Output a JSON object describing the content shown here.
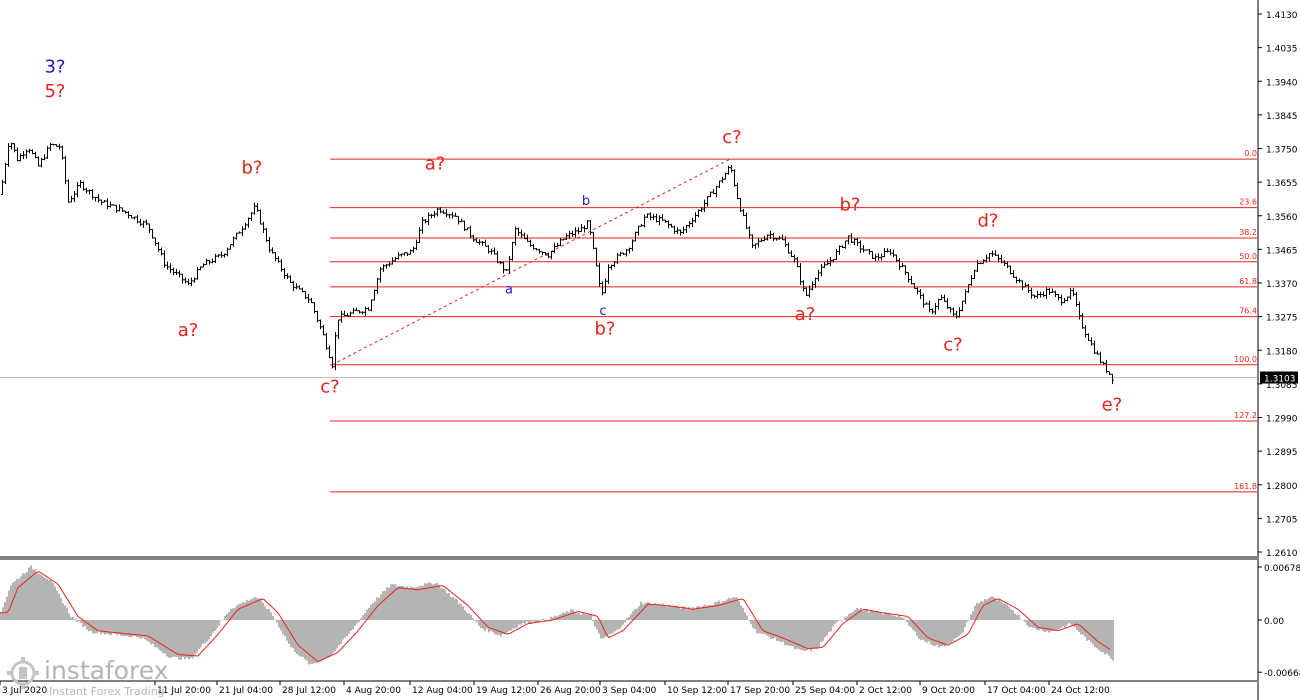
{
  "chart_data": [
    {
      "type": "bar",
      "panel": "price",
      "y_ticks": [
        1.413,
        1.4035,
        1.394,
        1.3845,
        1.375,
        1.3655,
        1.356,
        1.3465,
        1.337,
        1.3275,
        1.318,
        1.3085,
        1.299,
        1.2895,
        1.28,
        1.2705,
        1.261
      ],
      "y_tick_labels": [
        "1.4130",
        "1.4035",
        "1.3940",
        "1.3845",
        "1.3750",
        "1.3655",
        "1.3560",
        "1.3465",
        "1.3370",
        "1.3275",
        "1.3180",
        "1.3085",
        "1.2990",
        "1.2895",
        "1.2800",
        "1.2705",
        "1.2610"
      ],
      "ylim": [
        1.26,
        1.4165
      ],
      "x_tick_labels": [
        "3 Jul 2020",
        "11 Jul 20:00",
        "21 Jul 04:00",
        "28 Jul 12:00",
        "4 Aug 20:00",
        "12 Aug 04:00",
        "19 Aug 12:00",
        "26 Aug 20:00",
        "3 Sep 04:00",
        "10 Sep 12:00",
        "17 Sep 20:00",
        "25 Sep 04:00",
        "2 Oct 12:00",
        "9 Oct 20:00",
        "17 Oct 04:00",
        "24 Oct 12:00"
      ],
      "current_price": 1.3103,
      "current_price_label": "1.3103",
      "waypoints": [
        {
          "x": 0,
          "y": 1.362
        },
        {
          "x": 9,
          "y": 1.378
        },
        {
          "x": 17,
          "y": 1.372
        },
        {
          "x": 28,
          "y": 1.3755
        },
        {
          "x": 38,
          "y": 1.37
        },
        {
          "x": 50,
          "y": 1.376
        },
        {
          "x": 60,
          "y": 1.3755
        },
        {
          "x": 68,
          "y": 1.36
        },
        {
          "x": 80,
          "y": 1.365
        },
        {
          "x": 100,
          "y": 1.36
        },
        {
          "x": 125,
          "y": 1.357
        },
        {
          "x": 148,
          "y": 1.353
        },
        {
          "x": 165,
          "y": 1.342
        },
        {
          "x": 182,
          "y": 1.338
        },
        {
          "x": 188,
          "y": 1.3365
        },
        {
          "x": 202,
          "y": 1.342
        },
        {
          "x": 222,
          "y": 1.345
        },
        {
          "x": 240,
          "y": 1.352
        },
        {
          "x": 255,
          "y": 1.3585
        },
        {
          "x": 270,
          "y": 1.346
        },
        {
          "x": 290,
          "y": 1.337
        },
        {
          "x": 310,
          "y": 1.332
        },
        {
          "x": 322,
          "y": 1.323
        },
        {
          "x": 332,
          "y": 1.314
        },
        {
          "x": 337,
          "y": 1.327
        },
        {
          "x": 352,
          "y": 1.3285
        },
        {
          "x": 368,
          "y": 1.33
        },
        {
          "x": 380,
          "y": 1.341
        },
        {
          "x": 398,
          "y": 1.3445
        },
        {
          "x": 412,
          "y": 1.346
        },
        {
          "x": 422,
          "y": 1.354
        },
        {
          "x": 438,
          "y": 1.358
        },
        {
          "x": 455,
          "y": 1.356
        },
        {
          "x": 472,
          "y": 1.35
        },
        {
          "x": 490,
          "y": 1.346
        },
        {
          "x": 506,
          "y": 1.34
        },
        {
          "x": 515,
          "y": 1.352
        },
        {
          "x": 528,
          "y": 1.348
        },
        {
          "x": 548,
          "y": 1.345
        },
        {
          "x": 565,
          "y": 1.35
        },
        {
          "x": 580,
          "y": 1.352
        },
        {
          "x": 588,
          "y": 1.354
        },
        {
          "x": 595,
          "y": 1.343
        },
        {
          "x": 601,
          "y": 1.333
        },
        {
          "x": 608,
          "y": 1.342
        },
        {
          "x": 628,
          "y": 1.347
        },
        {
          "x": 645,
          "y": 1.356
        },
        {
          "x": 662,
          "y": 1.3545
        },
        {
          "x": 680,
          "y": 1.351
        },
        {
          "x": 700,
          "y": 1.358
        },
        {
          "x": 718,
          "y": 1.365
        },
        {
          "x": 730,
          "y": 1.37
        },
        {
          "x": 738,
          "y": 1.36
        },
        {
          "x": 752,
          "y": 1.347
        },
        {
          "x": 768,
          "y": 1.351
        },
        {
          "x": 782,
          "y": 1.349
        },
        {
          "x": 795,
          "y": 1.343
        },
        {
          "x": 805,
          "y": 1.333
        },
        {
          "x": 815,
          "y": 1.339
        },
        {
          "x": 832,
          "y": 1.344
        },
        {
          "x": 848,
          "y": 1.35
        },
        {
          "x": 860,
          "y": 1.347
        },
        {
          "x": 875,
          "y": 1.344
        },
        {
          "x": 890,
          "y": 1.346
        },
        {
          "x": 905,
          "y": 1.34
        },
        {
          "x": 920,
          "y": 1.333
        },
        {
          "x": 930,
          "y": 1.3285
        },
        {
          "x": 940,
          "y": 1.333
        },
        {
          "x": 955,
          "y": 1.327
        },
        {
          "x": 965,
          "y": 1.334
        },
        {
          "x": 975,
          "y": 1.342
        },
        {
          "x": 990,
          "y": 1.3455
        },
        {
          "x": 1005,
          "y": 1.342
        },
        {
          "x": 1020,
          "y": 1.337
        },
        {
          "x": 1035,
          "y": 1.333
        },
        {
          "x": 1048,
          "y": 1.335
        },
        {
          "x": 1060,
          "y": 1.332
        },
        {
          "x": 1072,
          "y": 1.3345
        },
        {
          "x": 1080,
          "y": 1.326
        },
        {
          "x": 1092,
          "y": 1.319
        },
        {
          "x": 1102,
          "y": 1.314
        },
        {
          "x": 1112,
          "y": 1.3103
        }
      ],
      "fib_levels": [
        {
          "value": 1.372,
          "label": "0.0"
        },
        {
          "value": 1.3583,
          "label": "23.6"
        },
        {
          "value": 1.3497,
          "label": "38.2"
        },
        {
          "value": 1.343,
          "label": "50.0"
        },
        {
          "value": 1.3359,
          "label": "61.8"
        },
        {
          "value": 1.3275,
          "label": "76.4"
        },
        {
          "value": 1.3139,
          "label": "100.0"
        },
        {
          "value": 1.298,
          "label": "127.2"
        },
        {
          "value": 1.278,
          "label": "161.8"
        }
      ],
      "trend_line": {
        "from": {
          "x": 332,
          "y": 1.3139
        },
        "to": {
          "x": 730,
          "y": 1.372
        },
        "style": "dashed",
        "color": "#e8231a"
      },
      "wave_labels": [
        {
          "text": "3?",
          "x": 55,
          "y": 1.3965,
          "color": "#1a1ad0",
          "size": "large"
        },
        {
          "text": "5?",
          "x": 55,
          "y": 1.3895,
          "color": "#e8231a",
          "size": "large"
        },
        {
          "text": "a?",
          "x": 188,
          "y": 1.322,
          "color": "#e8231a",
          "size": "large"
        },
        {
          "text": "b?",
          "x": 252,
          "y": 1.368,
          "color": "#e8231a",
          "size": "large"
        },
        {
          "text": "c?",
          "x": 330,
          "y": 1.306,
          "color": "#e8231a",
          "size": "large"
        },
        {
          "text": "a?",
          "x": 435,
          "y": 1.369,
          "color": "#e8231a",
          "size": "large"
        },
        {
          "text": "a",
          "x": 509,
          "y": 1.334,
          "color": "#1a1ad0",
          "size": "small"
        },
        {
          "text": "b",
          "x": 586,
          "y": 1.359,
          "color": "#1a1ad0",
          "size": "small"
        },
        {
          "text": "c",
          "x": 603,
          "y": 1.328,
          "color": "#1a1ad0",
          "size": "small"
        },
        {
          "text": "b?",
          "x": 605,
          "y": 1.3225,
          "color": "#e8231a",
          "size": "large"
        },
        {
          "text": "c?",
          "x": 732,
          "y": 1.3765,
          "color": "#e8231a",
          "size": "large"
        },
        {
          "text": "a?",
          "x": 805,
          "y": 1.3265,
          "color": "#e8231a",
          "size": "large"
        },
        {
          "text": "b?",
          "x": 850,
          "y": 1.3575,
          "color": "#e8231a",
          "size": "large"
        },
        {
          "text": "c?",
          "x": 953,
          "y": 1.318,
          "color": "#e8231a",
          "size": "large"
        },
        {
          "text": "d?",
          "x": 988,
          "y": 1.353,
          "color": "#e8231a",
          "size": "large"
        },
        {
          "text": "e?",
          "x": 1112,
          "y": 1.301,
          "color": "#e8231a",
          "size": "large"
        }
      ]
    },
    {
      "type": "area",
      "panel": "oscillator",
      "y_tick_labels": [
        "0.00678",
        "0.00",
        "-0.00668"
      ],
      "y_ticks": [
        0.00678,
        0.0,
        -0.00668
      ],
      "ylim": [
        -0.0074,
        0.0072
      ],
      "waypoints": [
        {
          "x": 0,
          "y": 0.001
        },
        {
          "x": 10,
          "y": 0.0045
        },
        {
          "x": 30,
          "y": 0.0068
        },
        {
          "x": 50,
          "y": 0.005
        },
        {
          "x": 70,
          "y": 0.0005
        },
        {
          "x": 90,
          "y": -0.0015
        },
        {
          "x": 110,
          "y": -0.0018
        },
        {
          "x": 140,
          "y": -0.0022
        },
        {
          "x": 170,
          "y": -0.0048
        },
        {
          "x": 190,
          "y": -0.005
        },
        {
          "x": 210,
          "y": -0.002
        },
        {
          "x": 230,
          "y": 0.0015
        },
        {
          "x": 255,
          "y": 0.003
        },
        {
          "x": 270,
          "y": 0.001
        },
        {
          "x": 290,
          "y": -0.0035
        },
        {
          "x": 310,
          "y": -0.0058
        },
        {
          "x": 330,
          "y": -0.0045
        },
        {
          "x": 350,
          "y": -0.0015
        },
        {
          "x": 370,
          "y": 0.002
        },
        {
          "x": 390,
          "y": 0.0045
        },
        {
          "x": 410,
          "y": 0.0042
        },
        {
          "x": 435,
          "y": 0.0048
        },
        {
          "x": 460,
          "y": 0.002
        },
        {
          "x": 480,
          "y": -0.001
        },
        {
          "x": 500,
          "y": -0.002
        },
        {
          "x": 520,
          "y": -0.0005
        },
        {
          "x": 545,
          "y": 0.0
        },
        {
          "x": 570,
          "y": 0.0012
        },
        {
          "x": 590,
          "y": 0.0005
        },
        {
          "x": 600,
          "y": -0.0025
        },
        {
          "x": 615,
          "y": -0.0015
        },
        {
          "x": 640,
          "y": 0.0022
        },
        {
          "x": 660,
          "y": 0.002
        },
        {
          "x": 685,
          "y": 0.0015
        },
        {
          "x": 710,
          "y": 0.002
        },
        {
          "x": 735,
          "y": 0.003
        },
        {
          "x": 755,
          "y": -0.0015
        },
        {
          "x": 775,
          "y": -0.0025
        },
        {
          "x": 800,
          "y": -0.004
        },
        {
          "x": 815,
          "y": -0.0038
        },
        {
          "x": 835,
          "y": -0.0005
        },
        {
          "x": 855,
          "y": 0.0015
        },
        {
          "x": 875,
          "y": 0.001
        },
        {
          "x": 900,
          "y": 0.0005
        },
        {
          "x": 920,
          "y": -0.0025
        },
        {
          "x": 940,
          "y": -0.0035
        },
        {
          "x": 960,
          "y": -0.002
        },
        {
          "x": 975,
          "y": 0.002
        },
        {
          "x": 990,
          "y": 0.003
        },
        {
          "x": 1010,
          "y": 0.0015
        },
        {
          "x": 1030,
          "y": -0.001
        },
        {
          "x": 1050,
          "y": -0.0015
        },
        {
          "x": 1070,
          "y": -0.0005
        },
        {
          "x": 1090,
          "y": -0.003
        },
        {
          "x": 1112,
          "y": -0.005
        }
      ]
    }
  ],
  "watermark": {
    "brand": "instaforex",
    "tagline": "Instant Forex Trading"
  }
}
